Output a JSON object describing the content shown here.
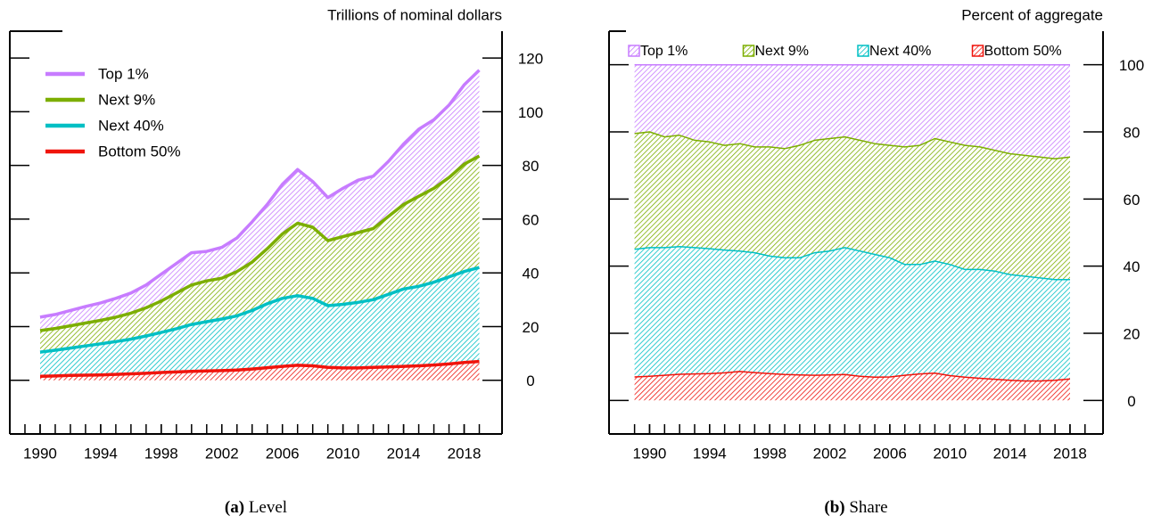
{
  "chart_data": [
    {
      "type": "area",
      "stacked": true,
      "title": "Trillions of nominal dollars",
      "caption_label": "(a)",
      "caption": "Level",
      "legend": "upper left",
      "x": [
        1990,
        1991,
        1992,
        1993,
        1994,
        1995,
        1996,
        1997,
        1998,
        1999,
        2000,
        2001,
        2002,
        2003,
        2004,
        2005,
        2006,
        2007,
        2008,
        2009,
        2010,
        2011,
        2012,
        2013,
        2014,
        2015,
        2016,
        2017,
        2018,
        2019
      ],
      "series": [
        {
          "name": "Top 1%",
          "color": "#c77cff",
          "values": [
            5.0,
            5.2,
            5.7,
            6.2,
            6.5,
            7.0,
            7.5,
            8.5,
            10.0,
            11.0,
            12.0,
            11.0,
            11.5,
            12.5,
            15.0,
            16.5,
            18.5,
            20.0,
            17.0,
            16.0,
            18.0,
            19.5,
            19.5,
            20.5,
            22.5,
            25.0,
            25.5,
            27.0,
            29.5,
            32.0
          ]
        },
        {
          "name": "Next 9%",
          "color": "#7cae00",
          "values": [
            8.0,
            8.1,
            8.3,
            8.5,
            8.7,
            9.1,
            9.7,
            10.5,
            11.7,
            13.3,
            14.7,
            15.2,
            15.2,
            16.5,
            18.0,
            20.5,
            24.0,
            27.0,
            26.5,
            24.2,
            25.2,
            26.0,
            26.5,
            29.0,
            31.5,
            33.5,
            35.0,
            37.0,
            40.0,
            41.5
          ]
        },
        {
          "name": "Next 40%",
          "color": "#00bfc4",
          "values": [
            9.0,
            9.6,
            10.2,
            10.9,
            11.6,
            12.2,
            12.9,
            13.9,
            14.9,
            16.1,
            17.5,
            18.3,
            19.2,
            20.2,
            21.8,
            23.8,
            25.3,
            25.9,
            25.1,
            23.0,
            23.7,
            24.4,
            25.2,
            27.0,
            28.8,
            29.6,
            30.8,
            32.4,
            33.9,
            35.0
          ]
        },
        {
          "name": "Bottom 50%",
          "color": "#f0140c",
          "values": [
            1.5,
            1.6,
            1.8,
            1.9,
            2.0,
            2.2,
            2.4,
            2.6,
            2.9,
            3.1,
            3.3,
            3.5,
            3.6,
            3.8,
            4.2,
            4.7,
            5.2,
            5.6,
            5.4,
            4.8,
            4.6,
            4.6,
            4.8,
            5.0,
            5.2,
            5.4,
            5.7,
            6.1,
            6.6,
            7.0
          ]
        }
      ],
      "xlim": [
        1988,
        2020.5
      ],
      "xticks": [
        1990,
        1994,
        1998,
        2002,
        2006,
        2010,
        2014,
        2018
      ],
      "xminorticks": [
        1989,
        1990,
        1991,
        1992,
        1993,
        1994,
        1995,
        1996,
        1997,
        1998,
        1999,
        2000,
        2001,
        2002,
        2003,
        2004,
        2005,
        2006,
        2007,
        2008,
        2009,
        2010,
        2011,
        2012,
        2013,
        2014,
        2015,
        2016,
        2017,
        2018,
        2019
      ],
      "ylim": [
        -20,
        130
      ],
      "yticks": [
        0,
        20,
        40,
        60,
        80,
        100,
        120
      ]
    },
    {
      "type": "area",
      "stacked": true,
      "title": "Percent of aggregate",
      "caption_label": "(b)",
      "caption": "Share",
      "legend": "top",
      "x": [
        1989,
        1990,
        1991,
        1992,
        1993,
        1994,
        1995,
        1996,
        1997,
        1998,
        1999,
        2000,
        2001,
        2002,
        2003,
        2004,
        2005,
        2006,
        2007,
        2008,
        2009,
        2010,
        2011,
        2012,
        2013,
        2014,
        2015,
        2016,
        2017,
        2018
      ],
      "series": [
        {
          "name": "Top 1%",
          "color": "#c77cff",
          "values": [
            20.5,
            20.0,
            21.5,
            21.0,
            22.5,
            23.0,
            24.0,
            23.5,
            24.5,
            24.5,
            25.0,
            24.0,
            22.5,
            22.0,
            21.5,
            22.5,
            23.5,
            24.0,
            24.5,
            24.0,
            22.0,
            23.0,
            24.0,
            24.5,
            25.5,
            26.5,
            27.0,
            27.5,
            28.0,
            27.5
          ]
        },
        {
          "name": "Next 9%",
          "color": "#7cae00",
          "values": [
            34.5,
            34.5,
            33.0,
            33.2,
            32.0,
            31.8,
            31.2,
            32.0,
            31.5,
            32.5,
            32.5,
            33.5,
            33.5,
            33.5,
            33.0,
            33.0,
            33.0,
            33.5,
            35.0,
            35.5,
            36.5,
            36.5,
            37.0,
            36.5,
            36.0,
            36.0,
            36.0,
            36.0,
            36.0,
            36.5
          ]
        },
        {
          "name": "Next 40%",
          "color": "#00bfc4",
          "values": [
            38.0,
            38.3,
            38.0,
            38.0,
            37.6,
            37.2,
            36.6,
            35.9,
            35.7,
            35.0,
            34.8,
            34.9,
            36.5,
            36.9,
            37.8,
            37.3,
            36.6,
            35.5,
            33.0,
            32.6,
            33.4,
            33.1,
            32.1,
            32.4,
            32.2,
            31.5,
            31.2,
            30.7,
            30.0,
            29.6
          ]
        },
        {
          "name": "Bottom 50%",
          "color": "#f0140c",
          "values": [
            7.0,
            7.2,
            7.5,
            7.8,
            7.9,
            8.0,
            8.2,
            8.6,
            8.3,
            8.0,
            7.7,
            7.6,
            7.5,
            7.6,
            7.7,
            7.2,
            6.9,
            7.0,
            7.5,
            7.9,
            8.1,
            7.4,
            6.9,
            6.6,
            6.3,
            6.0,
            5.8,
            5.8,
            6.0,
            6.4
          ]
        }
      ],
      "xlim": [
        1987.3,
        2020.2
      ],
      "xticks": [
        1990,
        1994,
        1998,
        2002,
        2006,
        2010,
        2014,
        2018
      ],
      "xminorticks": [
        1989,
        1990,
        1991,
        1992,
        1993,
        1994,
        1995,
        1996,
        1997,
        1998,
        1999,
        2000,
        2001,
        2002,
        2003,
        2004,
        2005,
        2006,
        2007,
        2008,
        2009,
        2010,
        2011,
        2012,
        2013,
        2014,
        2015,
        2016,
        2017,
        2018,
        2019
      ],
      "ylim": [
        -10,
        110
      ],
      "yticks": [
        0,
        20,
        40,
        60,
        80,
        100
      ]
    }
  ]
}
